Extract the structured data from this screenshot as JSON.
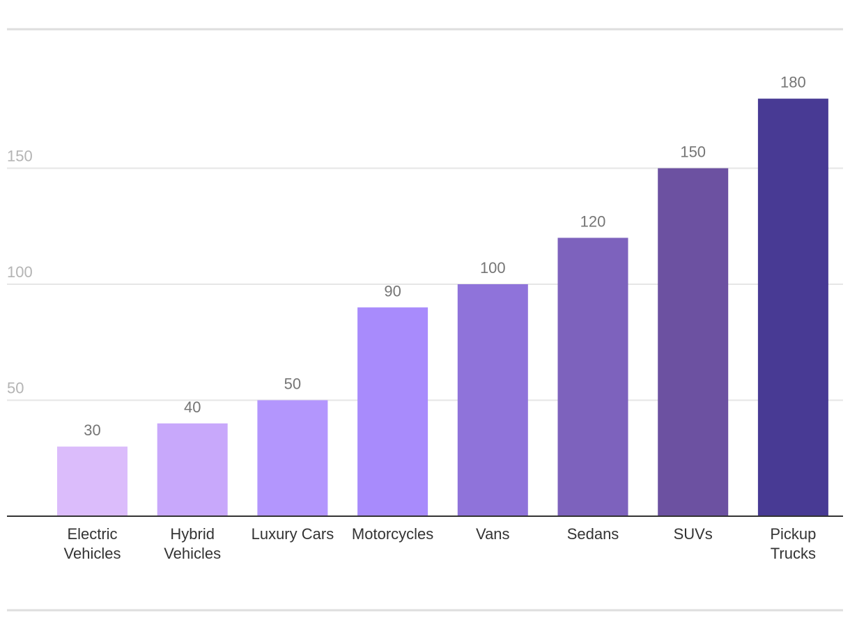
{
  "chart_data": {
    "type": "bar",
    "categories": [
      [
        "Electric",
        "Vehicles"
      ],
      [
        "Hybrid",
        "Vehicles"
      ],
      [
        "Luxury Cars"
      ],
      [
        "Motorcycles"
      ],
      [
        "Vans"
      ],
      [
        "Sedans"
      ],
      [
        "SUVs"
      ],
      [
        "Pickup",
        "Trucks"
      ]
    ],
    "values": [
      30,
      40,
      50,
      90,
      100,
      120,
      150,
      180
    ],
    "value_labels": [
      "30",
      "40",
      "50",
      "90",
      "100",
      "120",
      "150",
      "180"
    ],
    "bar_colors": [
      "#dbbcfb",
      "#c8a8fb",
      "#b396fd",
      "#a88bfc",
      "#8f73da",
      "#7d62bd",
      "#6c51a1",
      "#483a94"
    ],
    "yticks": [
      50,
      100,
      150
    ],
    "ytick_labels": [
      "50",
      "100",
      "150"
    ],
    "ylim": [
      0,
      200
    ],
    "grid": true,
    "title": "",
    "xlabel": "",
    "ylabel": ""
  }
}
